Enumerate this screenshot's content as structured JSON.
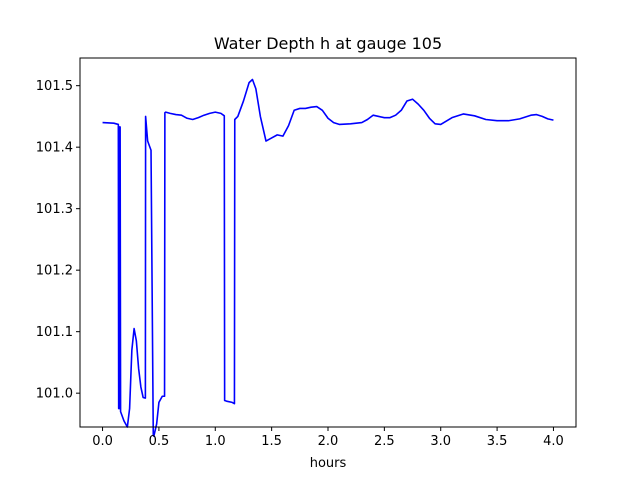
{
  "chart_data": {
    "type": "line",
    "title": "Water Depth h at gauge 105",
    "xlabel": "hours",
    "ylabel": "",
    "xlim": [
      -0.2,
      4.2
    ],
    "ylim": [
      100.945,
      101.545
    ],
    "xticks": [
      0.0,
      0.5,
      1.0,
      1.5,
      2.0,
      2.5,
      3.0,
      3.5,
      4.0
    ],
    "xtick_labels": [
      "0.0",
      "0.5",
      "1.0",
      "1.5",
      "2.0",
      "2.5",
      "3.0",
      "3.5",
      "4.0"
    ],
    "yticks": [
      101.0,
      101.1,
      101.2,
      101.3,
      101.4,
      101.5
    ],
    "ytick_labels": [
      "101.0",
      "101.1",
      "101.2",
      "101.3",
      "101.4",
      "101.5"
    ],
    "grid": false,
    "legend": "none",
    "series": [
      {
        "color": "#0000ff",
        "x": [
          0.0,
          0.1,
          0.14,
          0.143,
          0.146,
          0.15,
          0.153,
          0.156,
          0.16,
          0.19,
          0.22,
          0.24,
          0.26,
          0.28,
          0.3,
          0.32,
          0.34,
          0.36,
          0.38,
          0.382,
          0.4,
          0.43,
          0.45,
          0.455,
          0.48,
          0.5,
          0.53,
          0.55,
          0.553,
          0.56,
          0.6,
          0.65,
          0.7,
          0.75,
          0.8,
          0.85,
          0.9,
          0.95,
          1.0,
          1.05,
          1.08,
          1.083,
          1.1,
          1.15,
          1.17,
          1.173,
          1.2,
          1.25,
          1.3,
          1.33,
          1.36,
          1.4,
          1.45,
          1.5,
          1.55,
          1.6,
          1.65,
          1.7,
          1.75,
          1.8,
          1.85,
          1.9,
          1.95,
          2.0,
          2.05,
          2.1,
          2.2,
          2.3,
          2.35,
          2.4,
          2.45,
          2.5,
          2.55,
          2.6,
          2.65,
          2.7,
          2.75,
          2.8,
          2.85,
          2.9,
          2.95,
          3.0,
          3.1,
          3.2,
          3.3,
          3.4,
          3.5,
          3.6,
          3.7,
          3.8,
          3.85,
          3.9,
          3.95,
          4.0
        ],
        "y": [
          101.44,
          101.439,
          101.437,
          100.975,
          101.432,
          101.433,
          100.975,
          101.433,
          100.97,
          100.955,
          100.945,
          100.975,
          101.07,
          101.105,
          101.085,
          101.04,
          101.01,
          100.993,
          100.992,
          101.45,
          101.41,
          101.395,
          100.932,
          100.93,
          100.95,
          100.985,
          100.995,
          100.995,
          101.456,
          101.457,
          101.455,
          101.453,
          101.452,
          101.447,
          101.445,
          101.448,
          101.452,
          101.455,
          101.457,
          101.455,
          101.451,
          100.988,
          100.987,
          100.985,
          100.983,
          101.445,
          101.45,
          101.475,
          101.505,
          101.51,
          101.495,
          101.45,
          101.41,
          101.415,
          101.42,
          101.418,
          101.435,
          101.46,
          101.463,
          101.463,
          101.465,
          101.466,
          101.46,
          101.447,
          101.44,
          101.437,
          101.438,
          101.44,
          101.445,
          101.452,
          101.45,
          101.448,
          101.448,
          101.452,
          101.46,
          101.475,
          101.478,
          101.47,
          101.46,
          101.447,
          101.438,
          101.437,
          101.448,
          101.454,
          101.451,
          101.445,
          101.443,
          101.443,
          101.446,
          101.452,
          101.453,
          101.45,
          101.446,
          101.444
        ]
      }
    ]
  }
}
